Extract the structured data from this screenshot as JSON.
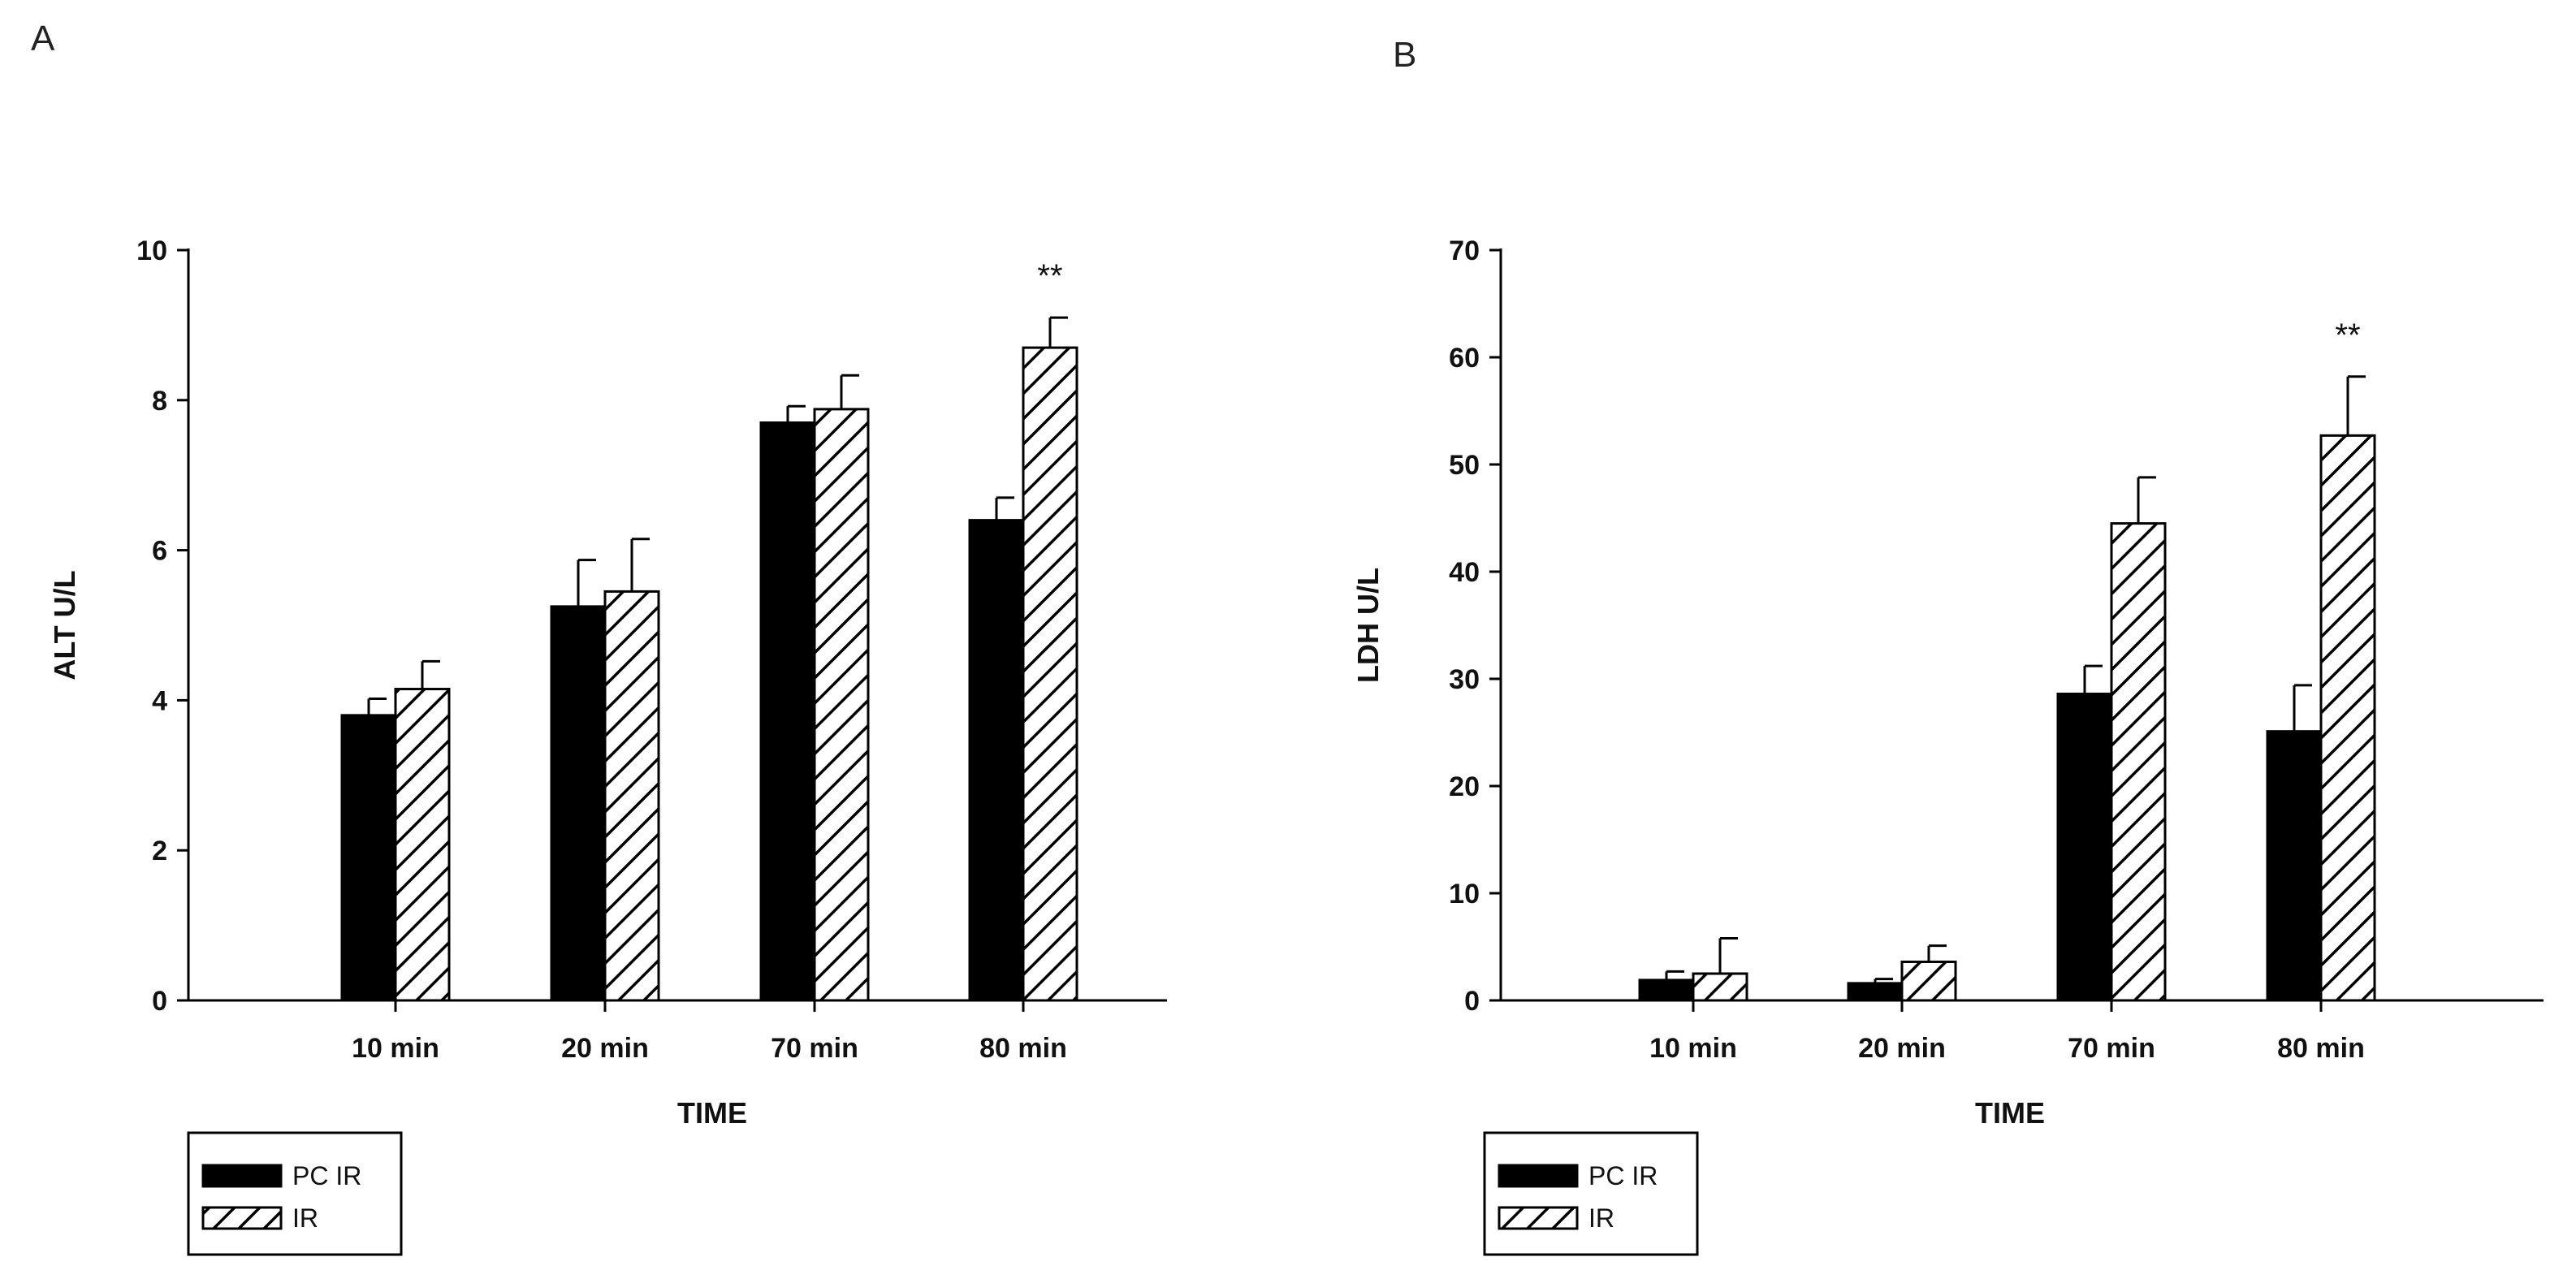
{
  "chart_data": [
    {
      "panel_label": "A",
      "type": "bar",
      "title": "",
      "xlabel": "TIME",
      "ylabel": "ALT U/L",
      "ylim": [
        0,
        10
      ],
      "yticks": [
        "0",
        "2",
        "4",
        "6",
        "8",
        "10"
      ],
      "categories": [
        "10 min",
        "20 min",
        "70 min",
        "80 min"
      ],
      "series": [
        {
          "name": "PC IR",
          "fill": "solid",
          "values": [
            3.8,
            5.25,
            7.7,
            6.4
          ],
          "errors": [
            0.22,
            0.62,
            0.22,
            0.3
          ]
        },
        {
          "name": "IR",
          "fill": "hatched",
          "values": [
            4.15,
            5.45,
            7.88,
            8.7
          ],
          "errors": [
            0.37,
            0.7,
            0.45,
            0.4
          ]
        }
      ],
      "annotations": [
        {
          "category": "80 min",
          "series": "IR",
          "text": "**"
        }
      ],
      "legend": {
        "position": "bottom-left",
        "entries": [
          "PC IR",
          "IR"
        ]
      }
    },
    {
      "panel_label": "B",
      "type": "bar",
      "title": "",
      "xlabel": "TIME",
      "ylabel": "LDH U/L",
      "ylim": [
        0,
        70
      ],
      "yticks": [
        "0",
        "10",
        "20",
        "30",
        "40",
        "50",
        "60",
        "70"
      ],
      "categories": [
        "10 min",
        "20 min",
        "70 min",
        "80 min"
      ],
      "series": [
        {
          "name": "PC IR",
          "fill": "solid",
          "values": [
            1.9,
            1.6,
            28.6,
            25.1
          ],
          "errors": [
            0.8,
            0.4,
            2.6,
            4.3
          ]
        },
        {
          "name": "IR",
          "fill": "hatched",
          "values": [
            2.5,
            3.6,
            44.5,
            52.7
          ],
          "errors": [
            3.3,
            1.5,
            4.3,
            5.5
          ]
        }
      ],
      "annotations": [
        {
          "category": "80 min",
          "series": "IR",
          "text": "**"
        }
      ],
      "legend": {
        "position": "bottom-left",
        "entries": [
          "PC IR",
          "IR"
        ]
      }
    }
  ],
  "colors": {
    "bar_solid": "#000000",
    "bar_hatched_fill": "#ffffff",
    "hatch": "#000000",
    "axis": "#000000",
    "text": "#111111"
  }
}
